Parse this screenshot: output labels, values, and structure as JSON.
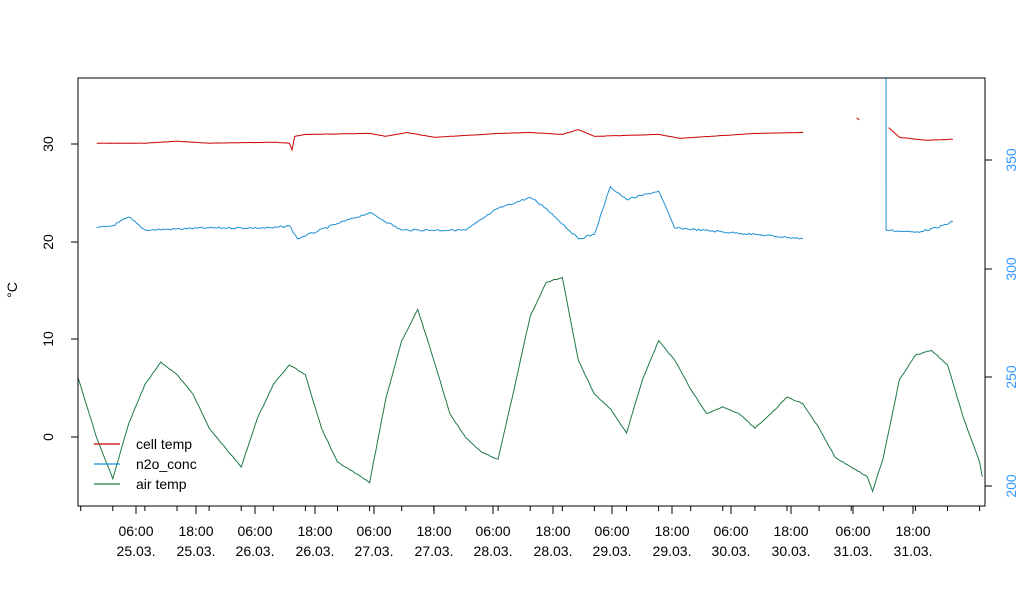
{
  "chart_data": {
    "type": "line",
    "title": "",
    "xlabel": "",
    "ylabel": "°C",
    "xlim": [
      "2013-03-24T23:30",
      "2013-04-01T01:00"
    ],
    "ylim": [
      -7,
      37
    ],
    "y2lim": [
      195,
      392
    ],
    "grid": false,
    "legend": {
      "position": "bottom-left",
      "colors": [
        "#cc0000",
        "#1e90d8",
        "#1f7a45"
      ]
    },
    "x_ticks": [
      {
        "time": "06:00",
        "date": "25.03."
      },
      {
        "time": "18:00",
        "date": "25.03."
      },
      {
        "time": "06:00",
        "date": "26.03."
      },
      {
        "time": "18:00",
        "date": "26.03."
      },
      {
        "time": "06:00",
        "date": "27.03."
      },
      {
        "time": "18:00",
        "date": "27.03."
      },
      {
        "time": "06:00",
        "date": "28.03."
      },
      {
        "time": "18:00",
        "date": "28.03."
      },
      {
        "time": "06:00",
        "date": "29.03."
      },
      {
        "time": "18:00",
        "date": "29.03."
      },
      {
        "time": "06:00",
        "date": "30.03."
      },
      {
        "time": "18:00",
        "date": "30.03."
      },
      {
        "time": "06:00",
        "date": "31.03."
      },
      {
        "time": "18:00",
        "date": "31.03."
      }
    ],
    "y_ticks": [
      "0",
      "10",
      "20",
      "30"
    ],
    "y2_ticks": [
      "200",
      "250",
      "300",
      "350"
    ],
    "series": [
      {
        "name": "cell temp",
        "axis": "left",
        "color": "#cc0000",
        "segments": [
          [
            [
              "2013-03-25T03:00",
              30.3
            ],
            [
              "2013-03-25T12:00",
              30.3
            ],
            [
              "2013-03-25T18:00",
              30.5
            ],
            [
              "2013-03-26T00:00",
              30.3
            ],
            [
              "2013-03-26T12:00",
              30.4
            ],
            [
              "2013-03-26T15:00",
              30.3
            ],
            [
              "2013-03-26T15:30",
              29.6
            ],
            [
              "2013-03-26T16:00",
              31.0
            ],
            [
              "2013-03-26T18:00",
              31.2
            ],
            [
              "2013-03-27T06:00",
              31.3
            ],
            [
              "2013-03-27T09:00",
              31.0
            ],
            [
              "2013-03-27T13:00",
              31.4
            ],
            [
              "2013-03-27T18:00",
              30.9
            ],
            [
              "2013-03-28T06:00",
              31.3
            ],
            [
              "2013-03-28T12:00",
              31.4
            ],
            [
              "2013-03-28T18:00",
              31.2
            ],
            [
              "2013-03-28T21:00",
              31.7
            ],
            [
              "2013-03-29T00:00",
              31.0
            ],
            [
              "2013-03-29T12:00",
              31.2
            ],
            [
              "2013-03-29T16:00",
              30.8
            ],
            [
              "2013-03-30T06:00",
              31.3
            ],
            [
              "2013-03-30T15:00",
              31.4
            ]
          ],
          [
            [
              "2013-03-31T01:00",
              32.9
            ],
            [
              "2013-03-31T01:30",
              32.7
            ]
          ],
          [
            [
              "2013-03-31T07:00",
              31.9
            ],
            [
              "2013-03-31T09:00",
              30.9
            ],
            [
              "2013-03-31T14:00",
              30.6
            ],
            [
              "2013-03-31T19:00",
              30.7
            ]
          ]
        ]
      },
      {
        "name": "n2o_conc",
        "axis": "right",
        "color": "#1e90d8",
        "segments": [
          [
            [
              "2013-03-25T03:00",
              323
            ],
            [
              "2013-03-25T06:00",
              324
            ],
            [
              "2013-03-25T09:00",
              328
            ],
            [
              "2013-03-25T12:00",
              322
            ],
            [
              "2013-03-26T00:00",
              323
            ],
            [
              "2013-03-26T12:00",
              323
            ],
            [
              "2013-03-26T15:00",
              324
            ],
            [
              "2013-03-26T16:30",
              318
            ],
            [
              "2013-03-27T00:00",
              325
            ],
            [
              "2013-03-27T06:00",
              330
            ],
            [
              "2013-03-27T12:00",
              322
            ],
            [
              "2013-03-28T00:00",
              322
            ],
            [
              "2013-03-28T06:00",
              332
            ],
            [
              "2013-03-28T12:00",
              337
            ],
            [
              "2013-03-28T15:00",
              332
            ],
            [
              "2013-03-28T21:00",
              318
            ],
            [
              "2013-03-29T00:00",
              320
            ],
            [
              "2013-03-29T03:00",
              342
            ],
            [
              "2013-03-29T06:00",
              336
            ],
            [
              "2013-03-29T12:00",
              340
            ],
            [
              "2013-03-29T15:00",
              323
            ],
            [
              "2013-03-30T06:00",
              320
            ],
            [
              "2013-03-30T15:00",
              318
            ]
          ],
          [
            [
              "2013-03-31T06:00",
              392
            ],
            [
              "2013-03-31T06:30",
              392
            ],
            [
              "2013-03-31T06:31",
              322
            ],
            [
              "2013-03-31T12:00",
              321
            ],
            [
              "2013-03-31T16:00",
              323
            ],
            [
              "2013-03-31T19:00",
              326
            ]
          ]
        ]
      },
      {
        "name": "air temp",
        "axis": "left",
        "color": "#1f7a45",
        "segments": [
          [
            [
              "2013-03-24T23:30",
              6.2
            ],
            [
              "2013-03-25T03:00",
              0.0
            ],
            [
              "2013-03-25T06:00",
              -4.2
            ],
            [
              "2013-03-25T09:00",
              1.5
            ],
            [
              "2013-03-25T12:00",
              5.5
            ],
            [
              "2013-03-25T15:00",
              7.8
            ],
            [
              "2013-03-25T18:00",
              6.5
            ],
            [
              "2013-03-25T21:00",
              4.5
            ],
            [
              "2013-03-26T00:00",
              1.0
            ],
            [
              "2013-03-26T03:00",
              -1.0
            ],
            [
              "2013-03-26T06:00",
              -3.0
            ],
            [
              "2013-03-26T09:00",
              2.0
            ],
            [
              "2013-03-26T12:00",
              5.5
            ],
            [
              "2013-03-26T15:00",
              7.5
            ],
            [
              "2013-03-26T18:00",
              6.5
            ],
            [
              "2013-03-26T21:00",
              1.0
            ],
            [
              "2013-03-27T00:00",
              -2.5
            ],
            [
              "2013-03-27T03:00",
              -3.5
            ],
            [
              "2013-03-27T06:00",
              -4.6
            ],
            [
              "2013-03-27T09:00",
              4.0
            ],
            [
              "2013-03-27T12:00",
              10.0
            ],
            [
              "2013-03-27T15:00",
              13.2
            ],
            [
              "2013-03-27T18:00",
              8.0
            ],
            [
              "2013-03-27T21:00",
              2.5
            ],
            [
              "2013-03-28T00:00",
              0.0
            ],
            [
              "2013-03-28T03:00",
              -1.5
            ],
            [
              "2013-03-28T06:00",
              -2.2
            ],
            [
              "2013-03-28T09:00",
              5.0
            ],
            [
              "2013-03-28T12:00",
              12.5
            ],
            [
              "2013-03-28T15:00",
              16.0
            ],
            [
              "2013-03-28T18:00",
              16.5
            ],
            [
              "2013-03-28T21:00",
              8.0
            ],
            [
              "2013-03-29T00:00",
              4.5
            ],
            [
              "2013-03-29T03:00",
              3.0
            ],
            [
              "2013-03-29T06:00",
              0.5
            ],
            [
              "2013-03-29T09:00",
              6.0
            ],
            [
              "2013-03-29T12:00",
              10.0
            ],
            [
              "2013-03-29T15:00",
              8.0
            ],
            [
              "2013-03-29T18:00",
              5.0
            ],
            [
              "2013-03-29T21:00",
              2.5
            ],
            [
              "2013-03-30T00:00",
              3.2
            ],
            [
              "2013-03-30T03:00",
              2.5
            ],
            [
              "2013-03-30T06:00",
              1.0
            ],
            [
              "2013-03-30T09:00",
              2.5
            ],
            [
              "2013-03-30T12:00",
              4.2
            ],
            [
              "2013-03-30T15:00",
              3.5
            ],
            [
              "2013-03-30T18:00",
              1.0
            ],
            [
              "2013-03-30T21:00",
              -2.0
            ],
            [
              "2013-03-31T00:00",
              -3.0
            ],
            [
              "2013-03-31T03:00",
              -4.0
            ],
            [
              "2013-03-31T04:00",
              -5.5
            ],
            [
              "2013-03-31T06:00",
              -2.0
            ],
            [
              "2013-03-31T09:00",
              6.0
            ],
            [
              "2013-03-31T12:00",
              8.5
            ],
            [
              "2013-03-31T15:00",
              9.0
            ],
            [
              "2013-03-31T18:00",
              7.5
            ],
            [
              "2013-03-31T21:00",
              2.0
            ],
            [
              "2013-04-01T00:00",
              -2.5
            ],
            [
              "2013-04-01T00:30",
              -4.0
            ]
          ]
        ]
      }
    ]
  }
}
